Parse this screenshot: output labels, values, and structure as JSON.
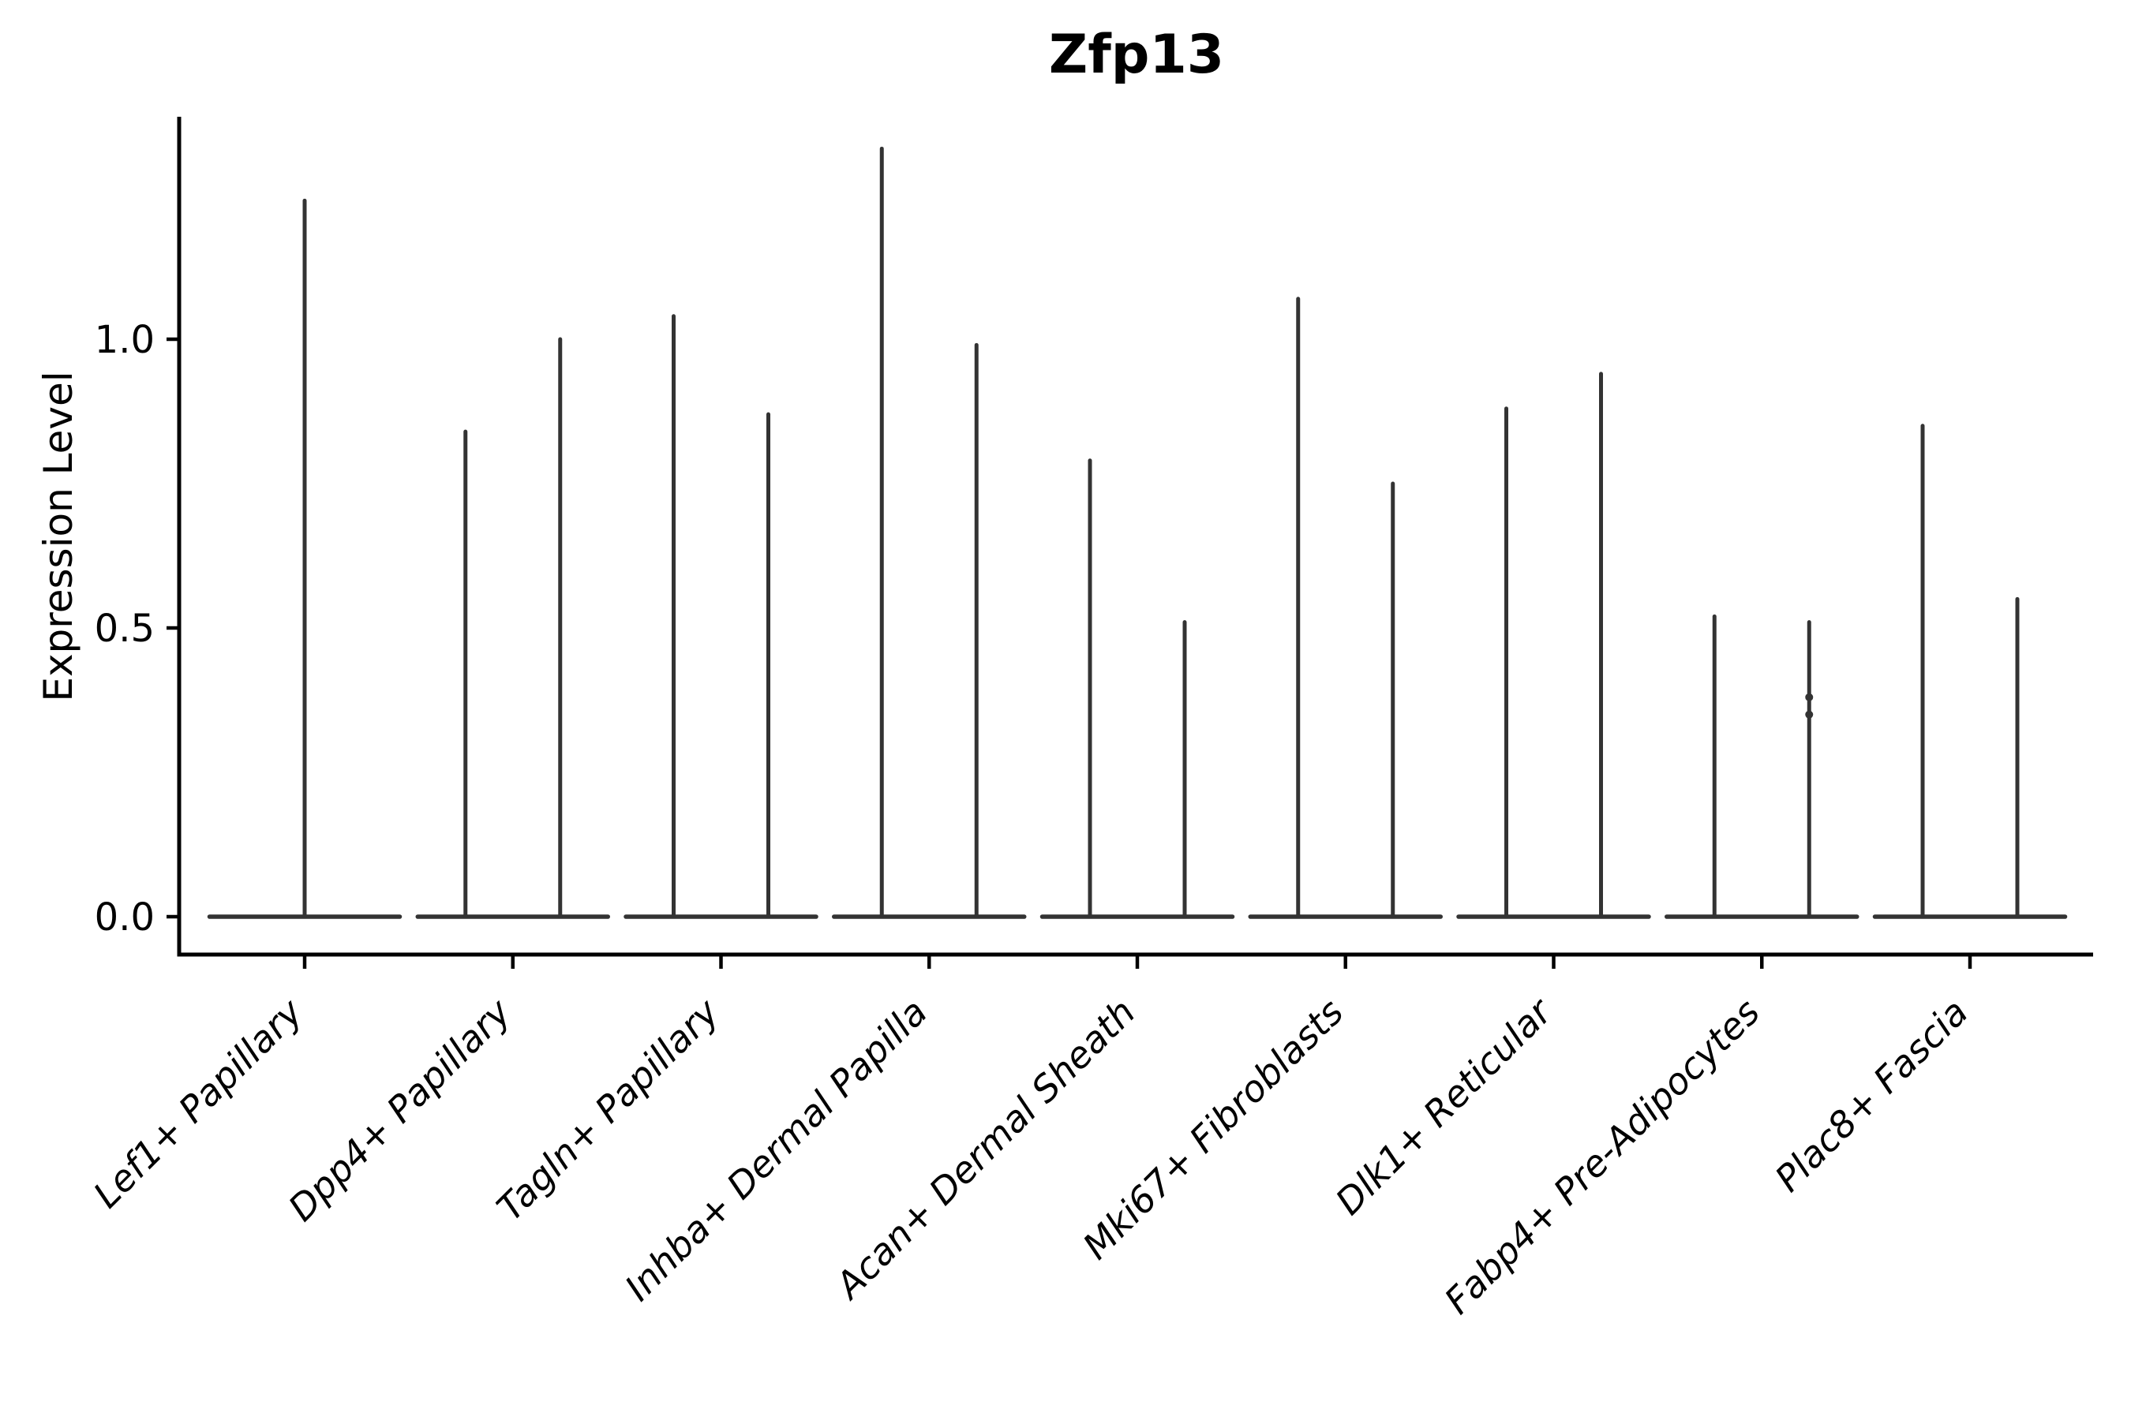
{
  "chart_data": {
    "type": "violin",
    "title": "Zfp13",
    "xlabel": "",
    "ylabel": "Expression Level",
    "grid": false,
    "legend": "none",
    "ylim": [
      -0.07,
      1.38
    ],
    "yticks": [
      {
        "value": 0.0,
        "label": "0.0"
      },
      {
        "value": 0.5,
        "label": "0.5"
      },
      {
        "value": 1.0,
        "label": "1.0"
      }
    ],
    "categories": [
      "Lef1+ Papillary",
      "Dpp4+ Papillary",
      "Tagln+ Papillary",
      "Inhba+ Dermal Papilla",
      "Acan+ Dermal Sheath",
      "Mki67+ Fibroblasts",
      "Dlk1+ Reticular",
      "Fabp4+ Pre-Adipocytes",
      "Plac8+ Fascia"
    ],
    "violins": [
      {
        "category": "Lef1+ Papillary",
        "spike_heights": [
          1.24
        ]
      },
      {
        "category": "Dpp4+ Papillary",
        "spike_heights": [
          0.84,
          1.0
        ]
      },
      {
        "category": "Tagln+ Papillary",
        "spike_heights": [
          1.04,
          0.87
        ]
      },
      {
        "category": "Inhba+ Dermal Papilla",
        "spike_heights": [
          1.33,
          0.99
        ]
      },
      {
        "category": "Acan+ Dermal Sheath",
        "spike_heights": [
          0.79,
          0.51
        ]
      },
      {
        "category": "Mki67+ Fibroblasts",
        "spike_heights": [
          1.07,
          0.75
        ]
      },
      {
        "category": "Dlk1+ Reticular",
        "spike_heights": [
          0.88,
          0.94
        ]
      },
      {
        "category": "Fabp4+ Pre-Adipocytes",
        "spike_heights": [
          0.52,
          0.51
        ]
      },
      {
        "category": "Plac8+ Fascia",
        "spike_heights": [
          0.85,
          0.55
        ]
      }
    ],
    "bumps": [
      {
        "category": "Fabp4+ Pre-Adipocytes",
        "spike_index": 1,
        "values": [
          0.38,
          0.35
        ]
      }
    ],
    "colors": {
      "violin": "#333333",
      "axis": "#000000",
      "text": "#000000",
      "background": "#ffffff"
    }
  }
}
